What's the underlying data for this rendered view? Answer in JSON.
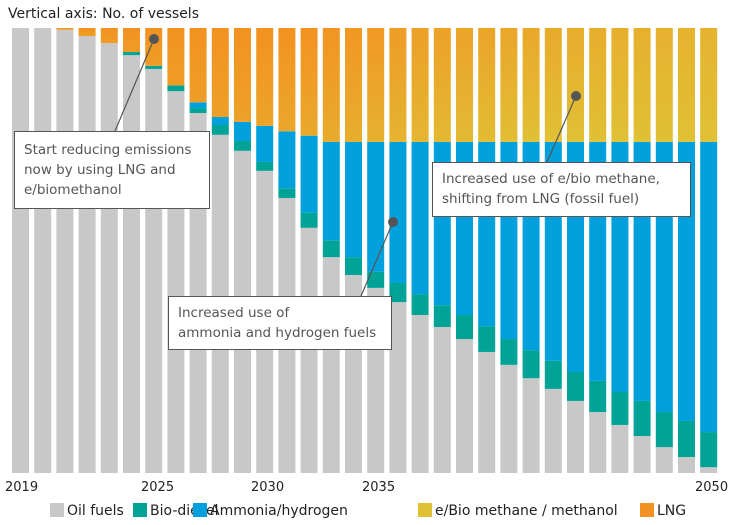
{
  "axis_title": "Vertical axis: No. of vessels",
  "colors": {
    "oil": "#c8c8c8",
    "biodiesel": "#00a396",
    "ammonia": "#00a0dc",
    "ebio": "#e0c035",
    "lng": "#f39121"
  },
  "legend": [
    {
      "key": "oil",
      "label": "Oil fuels"
    },
    {
      "key": "biodiesel",
      "label": "Bio-diesel"
    },
    {
      "key": "ammonia",
      "label": "Ammonia/hydrogen"
    },
    {
      "key": "ebio",
      "label": "e/Bio methane / methanol"
    },
    {
      "key": "lng",
      "label": "LNG"
    }
  ],
  "x_ticks": [
    "2019",
    "2025",
    "2030",
    "2035",
    "2050"
  ],
  "callouts": [
    {
      "text_lines": [
        "Start reducing emissions",
        "now by using LNG and",
        "e/biomethanol"
      ]
    },
    {
      "text_lines": [
        "Increased use of",
        "ammonia and hydrogen fuels"
      ]
    },
    {
      "text_lines": [
        "Increased use of e/bio methane,",
        "shifting from LNG (fossil fuel)"
      ]
    }
  ],
  "chart_data": {
    "type": "bar",
    "stacked": true,
    "normalized": true,
    "title": "",
    "ylabel": "Vertical axis: No. of vessels",
    "xlabel": "",
    "ylim": [
      0,
      100
    ],
    "unit": "share of vessels (%)",
    "grid": false,
    "legend_position": "bottom",
    "categories": [
      "2019",
      "2020",
      "2021",
      "2022",
      "2023",
      "2024",
      "2025",
      "2026",
      "2027",
      "2028",
      "2029",
      "2030",
      "2031",
      "2032",
      "2033",
      "2034",
      "2035",
      "2036",
      "2037",
      "2038",
      "2039",
      "2040",
      "2041",
      "2042",
      "2043",
      "2044",
      "2045",
      "2046",
      "2047",
      "2048",
      "2049",
      "2050"
    ],
    "tick_labels_shown": [
      "2019",
      "2025",
      "2030",
      "2035",
      "2050"
    ],
    "series": [
      {
        "name": "Oil fuels",
        "key": "oil",
        "values": [
          100,
          100,
          99.6,
          98.2,
          96.6,
          93.9,
          90.8,
          85.8,
          80.9,
          76.0,
          72.4,
          67.9,
          61.8,
          55.1,
          48.5,
          44.5,
          41.6,
          38.4,
          35.5,
          32.8,
          30.1,
          27.2,
          24.3,
          21.3,
          18.9,
          16.2,
          13.7,
          10.8,
          8.3,
          5.8,
          3.6,
          1.3
        ]
      },
      {
        "name": "Bio-diesel",
        "key": "biodiesel",
        "values": [
          0,
          0,
          0,
          0,
          0,
          0.7,
          0.7,
          1.3,
          1.1,
          2.2,
          2.2,
          2.0,
          2.2,
          3.4,
          3.8,
          4.0,
          3.6,
          4.3,
          4.7,
          4.9,
          5.4,
          5.8,
          5.8,
          6.3,
          6.3,
          6.5,
          7.0,
          7.4,
          7.9,
          7.9,
          8.1,
          7.9
        ]
      },
      {
        "name": "Ammonia/hydrogen",
        "key": "ammonia",
        "values": [
          0,
          0,
          0,
          0,
          0,
          0,
          0,
          0,
          1.3,
          1.8,
          4.3,
          8.1,
          12.8,
          17.3,
          22.1,
          25.9,
          29.2,
          31.7,
          34.2,
          36.7,
          38.9,
          41.4,
          44.3,
          46.8,
          49.2,
          51.7,
          53.7,
          56.2,
          58.2,
          60.7,
          62.7,
          65.2
        ]
      },
      {
        "name": "e/Bio methane / methanol",
        "key": "ebio",
        "values": [
          0,
          0,
          0,
          0,
          0,
          0,
          0,
          0,
          0.5,
          1.5,
          2.5,
          3.5,
          5.0,
          6.5,
          8.0,
          9.5,
          11.0,
          12.5,
          14.0,
          15.0,
          16.0,
          17.0,
          18.0,
          19.0,
          20.0,
          21.0,
          22.0,
          23.0,
          23.5,
          24.0,
          24.5,
          25.0
        ]
      },
      {
        "name": "LNG",
        "key": "lng",
        "values": [
          0,
          0,
          0.4,
          1.8,
          3.4,
          5.4,
          8.5,
          12.9,
          16.2,
          18.5,
          18.6,
          18.5,
          18.2,
          17.7,
          17.6,
          16.1,
          14.6,
          13.1,
          11.6,
          10.6,
          9.6,
          8.6,
          7.6,
          6.6,
          5.6,
          4.6,
          3.6,
          2.6,
          2.1,
          1.6,
          1.1,
          0.6
        ]
      }
    ],
    "annotations": [
      "Start reducing emissions now by using LNG and e/biomethanol",
      "Increased use of ammonia and hydrogen fuels",
      "Increased use of e/bio methane, shifting from LNG (fossil fuel)"
    ]
  }
}
